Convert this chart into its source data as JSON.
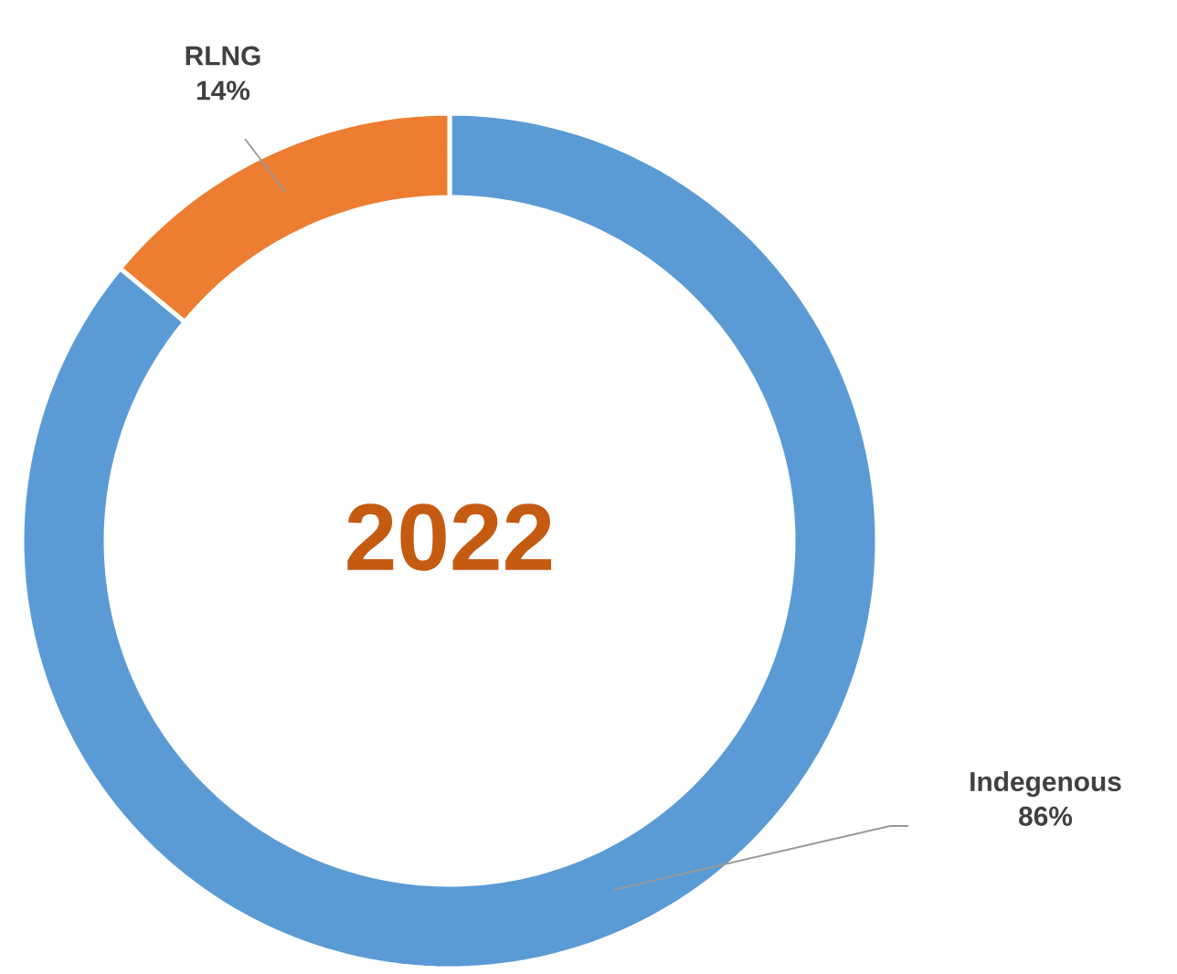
{
  "chart_data": {
    "type": "donut",
    "title": "2022",
    "categories": [
      "Indegenous",
      "RLNG"
    ],
    "values": [
      86,
      14
    ],
    "value_labels": [
      "86%",
      "14%"
    ],
    "colors": [
      "#5b9bd5",
      "#ed7d31"
    ]
  }
}
